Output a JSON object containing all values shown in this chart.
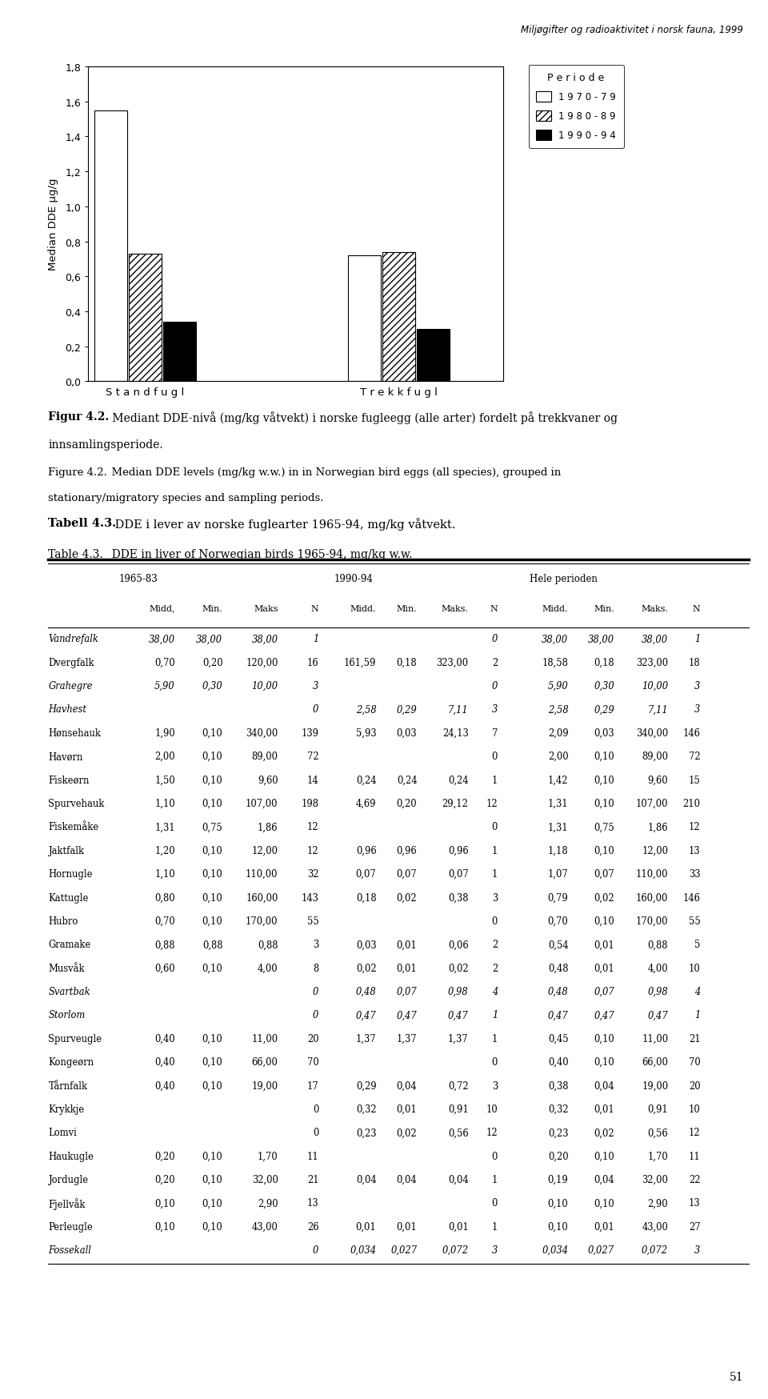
{
  "header_text": "Miljøgifter og radioaktivitet i norsk fauna, 1999",
  "page_number": "51",
  "bar_categories": [
    "Standfugl",
    "Trekkfugl"
  ],
  "bar_groups": [
    "1970-79",
    "1980-89",
    "1990-94"
  ],
  "bar_values": {
    "Standfugl": [
      1.55,
      0.73,
      0.34
    ],
    "Trekkfugl": [
      0.72,
      0.74,
      0.3
    ]
  },
  "ylabel": "Median DDE µg/g",
  "ylim": [
    0.0,
    1.8
  ],
  "yticks": [
    0.0,
    0.2,
    0.4,
    0.6,
    0.8,
    1.0,
    1.2,
    1.4,
    1.6,
    1.8
  ],
  "legend_title": "P e r i o d e",
  "legend_labels": [
    "1 9 7 0 - 7 9",
    "1 9 8 0 - 8 9",
    "1 9 9 0 - 9 4"
  ],
  "fig_caption_bold": "Figur 4.2.",
  "fig_caption_normal": " Mediant DDE-nivå (mg/kg våtvekt) i norske fugleegg (alle arter) fordelt på trekkvaner og",
  "fig_caption_line2": "innsamlingsperiode.",
  "fig_caption_en_label": "Figure 4.2.",
  "fig_caption_en_text": "  Median DDE levels (mg/kg w.w.) in in Norwegian bird eggs (all species), grouped in",
  "fig_caption_en_line2": "stationary/migratory species and sampling periods.",
  "table_title_bold": "Tabell 4.3.",
  "table_title_text": " DDE i lever av norske fuglearter 1965-94, mg/kg våtvekt.",
  "table_title_en_label": "Table 4.3.",
  "table_title_en_text": "  DDE in liver of Norwegian birds 1965-94, mg/kg w.w.",
  "table_period1": "1965-83",
  "table_period2": "1990-94",
  "table_period3": "Hele perioden",
  "table_col_headers": [
    "Midd,",
    "Min.",
    "Maks",
    "N",
    "Midd.",
    "Min.",
    "Maks.",
    "N",
    "Midd.",
    "Min.",
    "Maks.",
    "N"
  ],
  "table_rows": [
    [
      "Vandrefalk",
      "38,00",
      "38,00",
      "38,00",
      "1",
      "",
      "",
      "",
      "0",
      "38,00",
      "38,00",
      "38,00",
      "1"
    ],
    [
      "Dvergfalk",
      "0,70",
      "0,20",
      "120,00",
      "16",
      "161,59",
      "0,18",
      "323,00",
      "2",
      "18,58",
      "0,18",
      "323,00",
      "18"
    ],
    [
      "Grahegre",
      "5,90",
      "0,30",
      "10,00",
      "3",
      "",
      "",
      "",
      "0",
      "5,90",
      "0,30",
      "10,00",
      "3"
    ],
    [
      "Havhest",
      "",
      "",
      "",
      "0",
      "2,58",
      "0,29",
      "7,11",
      "3",
      "2,58",
      "0,29",
      "7,11",
      "3"
    ],
    [
      "Hønsehauk",
      "1,90",
      "0,10",
      "340,00",
      "139",
      "5,93",
      "0,03",
      "24,13",
      "7",
      "2,09",
      "0,03",
      "340,00",
      "146"
    ],
    [
      "Havørn",
      "2,00",
      "0,10",
      "89,00",
      "72",
      "",
      "",
      "",
      "0",
      "2,00",
      "0,10",
      "89,00",
      "72"
    ],
    [
      "Fiskeørn",
      "1,50",
      "0,10",
      "9,60",
      "14",
      "0,24",
      "0,24",
      "0,24",
      "1",
      "1,42",
      "0,10",
      "9,60",
      "15"
    ],
    [
      "Spurvehauk",
      "1,10",
      "0,10",
      "107,00",
      "198",
      "4,69",
      "0,20",
      "29,12",
      "12",
      "1,31",
      "0,10",
      "107,00",
      "210"
    ],
    [
      "Fiskemåke",
      "1,31",
      "0,75",
      "1,86",
      "12",
      "",
      "",
      "",
      "0",
      "1,31",
      "0,75",
      "1,86",
      "12"
    ],
    [
      "Jaktfalk",
      "1,20",
      "0,10",
      "12,00",
      "12",
      "0,96",
      "0,96",
      "0,96",
      "1",
      "1,18",
      "0,10",
      "12,00",
      "13"
    ],
    [
      "Hornugle",
      "1,10",
      "0,10",
      "110,00",
      "32",
      "0,07",
      "0,07",
      "0,07",
      "1",
      "1,07",
      "0,07",
      "110,00",
      "33"
    ],
    [
      "Kattugle",
      "0,80",
      "0,10",
      "160,00",
      "143",
      "0,18",
      "0,02",
      "0,38",
      "3",
      "0,79",
      "0,02",
      "160,00",
      "146"
    ],
    [
      "Hubro",
      "0,70",
      "0,10",
      "170,00",
      "55",
      "",
      "",
      "",
      "0",
      "0,70",
      "0,10",
      "170,00",
      "55"
    ],
    [
      "Gramake",
      "0,88",
      "0,88",
      "0,88",
      "3",
      "0,03",
      "0,01",
      "0,06",
      "2",
      "0,54",
      "0,01",
      "0,88",
      "5"
    ],
    [
      "Musvåk",
      "0,60",
      "0,10",
      "4,00",
      "8",
      "0,02",
      "0,01",
      "0,02",
      "2",
      "0,48",
      "0,01",
      "4,00",
      "10"
    ],
    [
      "Svartbak",
      "",
      "",
      "",
      "0",
      "0,48",
      "0,07",
      "0,98",
      "4",
      "0,48",
      "0,07",
      "0,98",
      "4"
    ],
    [
      "Storlom",
      "",
      "",
      "",
      "0",
      "0,47",
      "0,47",
      "0,47",
      "1",
      "0,47",
      "0,47",
      "0,47",
      "1"
    ],
    [
      "Spurveugle",
      "0,40",
      "0,10",
      "11,00",
      "20",
      "1,37",
      "1,37",
      "1,37",
      "1",
      "0,45",
      "0,10",
      "11,00",
      "21"
    ],
    [
      "kongeørn",
      "0,40",
      "0,10",
      "66,00",
      "70",
      "",
      "",
      "",
      "0",
      "0,40",
      "0,10",
      "66,00",
      "70"
    ],
    [
      "Tårnfalk",
      "0,40",
      "0,10",
      "19,00",
      "17",
      "0,29",
      "0,04",
      "0,72",
      "3",
      "0,38",
      "0,04",
      "19,00",
      "20"
    ],
    [
      "Krykkje",
      "",
      "",
      "",
      "0",
      "0,32",
      "0,01",
      "0,91",
      "10",
      "0,32",
      "0,01",
      "0,91",
      "10"
    ],
    [
      "Lomvi",
      "",
      "",
      "",
      "0",
      "0,23",
      "0,02",
      "0,56",
      "12",
      "0,23",
      "0,02",
      "0,56",
      "12"
    ],
    [
      "Haukugle",
      "0,20",
      "0,10",
      "1,70",
      "11",
      "",
      "",
      "",
      "0",
      "0,20",
      "0,10",
      "1,70",
      "11"
    ],
    [
      "Jordugle",
      "0,20",
      "0,10",
      "32,00",
      "21",
      "0,04",
      "0,04",
      "0,04",
      "1",
      "0,19",
      "0,04",
      "32,00",
      "22"
    ],
    [
      "Fjellvåk",
      "0,10",
      "0,10",
      "2,90",
      "13",
      "",
      "",
      "",
      "0",
      "0,10",
      "0,10",
      "2,90",
      "13"
    ],
    [
      "Perleugle",
      "0,10",
      "0,10",
      "43,00",
      "26",
      "0,01",
      "0,01",
      "0,01",
      "1",
      "0,10",
      "0,01",
      "43,00",
      "27"
    ],
    [
      "Fossekall",
      "",
      "",
      "",
      "0",
      "0,034",
      "0,027",
      "0,072",
      "3",
      "0,034",
      "0,027",
      "0,072",
      "3"
    ]
  ],
  "italic_rows": [
    0,
    2,
    3,
    15,
    16,
    26
  ],
  "kongeorn_cap": "Kongeørn"
}
